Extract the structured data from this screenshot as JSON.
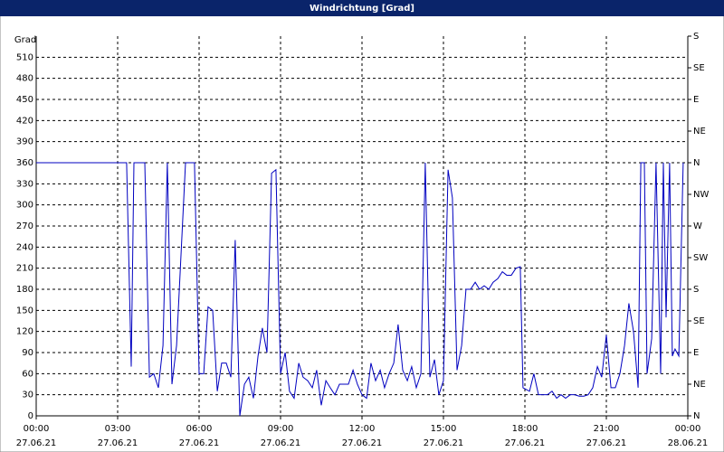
{
  "chart_data": {
    "type": "line",
    "title": "Windrichtung [Grad]",
    "ylabel": "Grad",
    "x": [
      0,
      3.33,
      3.5,
      3.6,
      4.0,
      4.17,
      4.33,
      4.5,
      4.67,
      4.83,
      5.0,
      5.17,
      5.5,
      5.83,
      6.0,
      6.17,
      6.33,
      6.5,
      6.67,
      6.83,
      7.0,
      7.17,
      7.33,
      7.5,
      7.67,
      7.83,
      8.0,
      8.17,
      8.33,
      8.5,
      8.67,
      8.83,
      9.0,
      9.17,
      9.33,
      9.5,
      9.67,
      9.83,
      10.0,
      10.17,
      10.33,
      10.5,
      10.67,
      10.83,
      11.0,
      11.17,
      11.33,
      11.5,
      11.67,
      11.83,
      12.0,
      12.17,
      12.33,
      12.5,
      12.67,
      12.83,
      13.0,
      13.17,
      13.33,
      13.5,
      13.67,
      13.83,
      14.0,
      14.17,
      14.33,
      14.5,
      14.67,
      14.83,
      15.0,
      15.17,
      15.33,
      15.5,
      15.67,
      15.83,
      16.0,
      16.17,
      16.33,
      16.5,
      16.67,
      16.83,
      17.0,
      17.17,
      17.33,
      17.5,
      17.67,
      17.83,
      17.93,
      18.17,
      18.33,
      18.5,
      18.67,
      18.83,
      19.0,
      19.17,
      19.33,
      19.5,
      19.67,
      19.83,
      20.0,
      20.17,
      20.33,
      20.5,
      20.67,
      20.83,
      21.0,
      21.17,
      21.33,
      21.5,
      21.67,
      21.83,
      22.0,
      22.17,
      22.27,
      22.4,
      22.5,
      22.67,
      22.83,
      23.0,
      23.1,
      23.2,
      23.33,
      23.43,
      23.53,
      23.67,
      23.83
    ],
    "series": [
      {
        "name": "Windrichtung",
        "color": "#0000c0",
        "values": [
          360,
          360,
          70,
          360,
          360,
          55,
          60,
          40,
          100,
          360,
          45,
          100,
          360,
          360,
          60,
          60,
          155,
          150,
          35,
          75,
          75,
          55,
          250,
          0,
          45,
          55,
          25,
          85,
          125,
          90,
          345,
          350,
          60,
          90,
          35,
          25,
          75,
          55,
          50,
          40,
          65,
          15,
          50,
          40,
          30,
          45,
          45,
          45,
          65,
          45,
          30,
          25,
          75,
          50,
          65,
          40,
          60,
          75,
          130,
          65,
          50,
          70,
          40,
          60,
          360,
          55,
          80,
          30,
          50,
          350,
          310,
          65,
          100,
          180,
          180,
          190,
          180,
          185,
          180,
          190,
          195,
          205,
          200,
          200,
          210,
          212,
          40,
          35,
          60,
          30,
          30,
          30,
          35,
          25,
          30,
          25,
          30,
          30,
          28,
          28,
          30,
          40,
          70,
          55,
          115,
          40,
          40,
          60,
          100,
          160,
          120,
          40,
          360,
          360,
          60,
          110,
          360,
          60,
          360,
          140,
          360,
          85,
          95,
          85,
          360
        ]
      }
    ],
    "xlim": [
      0,
      24
    ],
    "xticks": [
      {
        "value": 0,
        "label": "00:00",
        "date": "27.06.21"
      },
      {
        "value": 3,
        "label": "03:00",
        "date": "27.06.21"
      },
      {
        "value": 6,
        "label": "06:00",
        "date": "27.06.21"
      },
      {
        "value": 9,
        "label": "09:00",
        "date": "27.06.21"
      },
      {
        "value": 12,
        "label": "12:00",
        "date": "27.06.21"
      },
      {
        "value": 15,
        "label": "15:00",
        "date": "27.06.21"
      },
      {
        "value": 18,
        "label": "18:00",
        "date": "27.06.21"
      },
      {
        "value": 21,
        "label": "21:00",
        "date": "27.06.21"
      },
      {
        "value": 24,
        "label": "00:00",
        "date": "28.06.21"
      }
    ],
    "ylim": [
      0,
      540
    ],
    "yticks": [
      0,
      30,
      60,
      90,
      120,
      150,
      180,
      210,
      240,
      270,
      300,
      330,
      360,
      390,
      420,
      450,
      480,
      510
    ],
    "y2lim": [
      0,
      540
    ],
    "y2ticks": [
      {
        "value": 0,
        "label": "N"
      },
      {
        "value": 45,
        "label": "NE"
      },
      {
        "value": 90,
        "label": "E"
      },
      {
        "value": 135,
        "label": "SE"
      },
      {
        "value": 180,
        "label": "S"
      },
      {
        "value": 225,
        "label": "SW"
      },
      {
        "value": 270,
        "label": "W"
      },
      {
        "value": 315,
        "label": "NW"
      },
      {
        "value": 360,
        "label": "N"
      },
      {
        "value": 405,
        "label": "NE"
      },
      {
        "value": 450,
        "label": "E"
      },
      {
        "value": 495,
        "label": "SE"
      },
      {
        "value": 540,
        "label": "S"
      }
    ],
    "grid": true
  }
}
